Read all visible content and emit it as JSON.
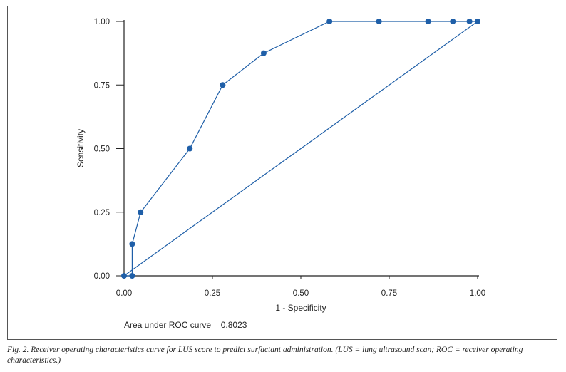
{
  "chart_data": {
    "type": "line",
    "title": "",
    "xlabel": "1 - Specificity",
    "ylabel": "Sensitivity",
    "xlim": [
      0,
      1
    ],
    "ylim": [
      0,
      1
    ],
    "xticks": [
      "0.00",
      "0.25",
      "0.50",
      "0.75",
      "1.00"
    ],
    "yticks": [
      "0.00",
      "0.25",
      "0.50",
      "0.75",
      "1.00"
    ],
    "series": [
      {
        "name": "ROC curve",
        "x": [
          0,
          0.023,
          0.023,
          0.047,
          0.186,
          0.279,
          0.395,
          0.581,
          0.721,
          0.86,
          0.93,
          0.977,
          1.0
        ],
        "y": [
          0,
          0,
          0.125,
          0.25,
          0.5,
          0.75,
          0.875,
          1,
          1,
          1,
          1,
          1,
          1
        ],
        "markers": true
      },
      {
        "name": "Reference line",
        "x": [
          0,
          1
        ],
        "y": [
          0,
          1
        ],
        "markers": false
      }
    ],
    "annotation": "Area under ROC curve = 0.8023",
    "color": "#1f5fa8",
    "grid": false
  },
  "caption": "Fig. 2. Receiver operating characteristics curve for LUS score to predict surfactant administration. (LUS = lung ultrasound scan; ROC = receiver operating characteristics.)"
}
